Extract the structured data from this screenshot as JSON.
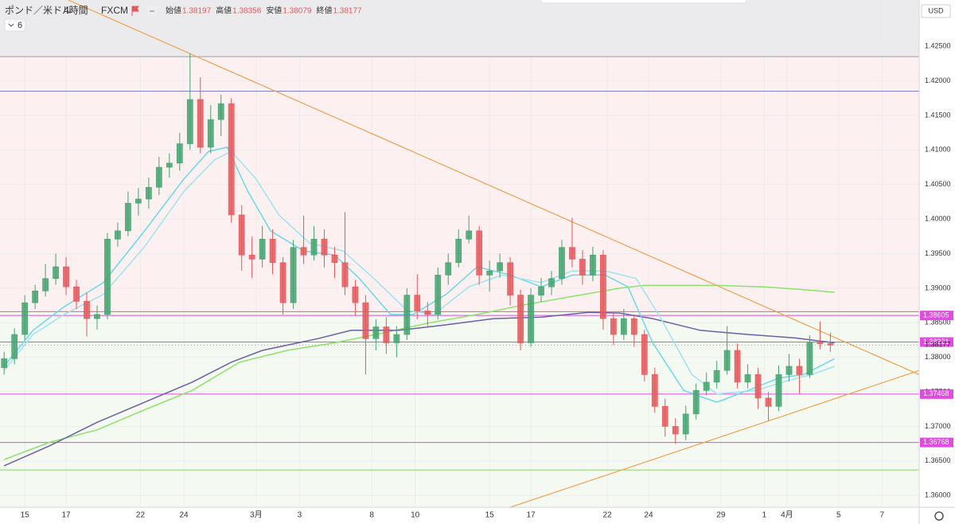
{
  "header": {
    "symbol": "ポンド／米ドル",
    "interval": "4時間",
    "source": "FXCM",
    "ohlc_labels": [
      "始値",
      "高値",
      "安値",
      "終値"
    ],
    "indicator_count": 6,
    "currency": "USD"
  },
  "chart_data": {
    "type": "candlestick",
    "x": [
      -1,
      -0.5,
      0,
      0.5,
      1,
      1.5,
      2,
      2.5,
      3,
      3.5,
      4,
      4.5,
      5,
      5.5,
      6,
      6.5,
      7,
      7.5,
      8,
      8.5,
      9,
      9.5,
      10,
      10.5,
      11,
      11.5,
      12,
      12.5,
      13,
      13.5,
      14,
      14.5,
      15,
      15.5,
      16,
      16.5,
      17,
      17.5,
      18,
      18.5,
      19,
      19.5,
      20,
      20.5,
      21,
      21.5,
      22,
      22.5,
      23,
      23.5,
      24,
      24.5,
      25,
      25.5,
      26,
      26.5,
      27,
      27.5,
      28,
      28.5,
      29,
      29.5,
      30,
      30.5,
      31,
      31.5,
      32,
      32.5,
      33,
      33.5,
      34,
      34.5,
      35,
      35.5,
      36,
      36.5,
      37,
      37.5,
      38,
      38.5,
      39
    ],
    "open": [
      1.3785,
      1.3798,
      1.3833,
      1.3879,
      1.3896,
      1.3914,
      1.3931,
      1.3902,
      1.3881,
      1.3856,
      1.3862,
      1.3971,
      1.3983,
      1.4023,
      1.4029,
      1.4046,
      1.4075,
      1.4081,
      1.4109,
      1.4173,
      1.4104,
      1.4144,
      1.4167,
      1.4006,
      1.3948,
      1.3942,
      1.3971,
      1.3937,
      1.3879,
      1.3959,
      1.3948,
      1.3971,
      1.3948,
      1.3937,
      1.3902,
      1.3879,
      1.3827,
      1.3844,
      1.3821,
      1.3833,
      1.389,
      1.3867,
      1.3862,
      1.3919,
      1.3937,
      1.3971,
      1.3983,
      1.3919,
      1.3925,
      1.3937,
      1.389,
      1.3821,
      1.389,
      1.3902,
      1.3914,
      1.3959,
      1.3942,
      1.3919,
      1.3948,
      1.3856,
      1.3833,
      1.3856,
      1.3833,
      1.3775,
      1.3729,
      1.37,
      1.3689,
      1.3718,
      1.3752,
      1.3764,
      1.3781,
      1.381,
      1.3764,
      1.3775,
      1.3741,
      1.3729,
      1.3775,
      1.3787,
      1.3775,
      1.3821,
      1.38197
    ],
    "high": [
      1.3808,
      1.3842,
      1.389,
      1.3905,
      1.3935,
      1.395,
      1.3945,
      1.3912,
      1.3893,
      1.3875,
      1.398,
      1.3995,
      1.404,
      1.4045,
      1.406,
      1.409,
      1.4095,
      1.4125,
      1.424,
      1.4205,
      1.4165,
      1.418,
      1.4175,
      1.402,
      1.3975,
      1.399,
      1.3985,
      1.3945,
      1.397,
      1.4005,
      1.399,
      1.3985,
      1.396,
      1.401,
      1.3912,
      1.389,
      1.3855,
      1.3858,
      1.3845,
      1.39,
      1.392,
      1.388,
      1.393,
      1.395,
      1.3985,
      1.4005,
      1.399,
      1.394,
      1.395,
      1.3945,
      1.3898,
      1.39,
      1.3915,
      1.3925,
      1.397,
      1.4002,
      1.3955,
      1.396,
      1.3955,
      1.3865,
      1.387,
      1.3862,
      1.384,
      1.3785,
      1.374,
      1.3712,
      1.373,
      1.3762,
      1.3778,
      1.3795,
      1.3845,
      1.382,
      1.379,
      1.3785,
      1.375,
      1.3788,
      1.3805,
      1.3798,
      1.3832,
      1.3852,
      1.38356
    ],
    "low": [
      1.3775,
      1.379,
      1.3825,
      1.387,
      1.3888,
      1.3905,
      1.389,
      1.387,
      1.383,
      1.384,
      1.3855,
      1.396,
      1.3975,
      1.4005,
      1.4015,
      1.4035,
      1.406,
      1.407,
      1.41,
      1.4095,
      1.4095,
      1.412,
      1.3995,
      1.3925,
      1.3915,
      1.393,
      1.392,
      1.3862,
      1.387,
      1.3935,
      1.394,
      1.393,
      1.3915,
      1.389,
      1.386,
      1.3775,
      1.381,
      1.3805,
      1.38,
      1.3825,
      1.3855,
      1.3845,
      1.3855,
      1.3905,
      1.393,
      1.3965,
      1.3905,
      1.3895,
      1.3915,
      1.3875,
      1.381,
      1.3815,
      1.388,
      1.389,
      1.3905,
      1.393,
      1.3905,
      1.391,
      1.384,
      1.3818,
      1.3825,
      1.3815,
      1.3765,
      1.372,
      1.3685,
      1.3675,
      1.368,
      1.371,
      1.3745,
      1.3755,
      1.3775,
      1.3755,
      1.3755,
      1.3725,
      1.3708,
      1.3722,
      1.3765,
      1.3748,
      1.377,
      1.3812,
      1.38079
    ],
    "close": [
      1.3798,
      1.3833,
      1.3879,
      1.3896,
      1.3914,
      1.3931,
      1.3902,
      1.3881,
      1.3856,
      1.3862,
      1.3971,
      1.3983,
      1.4023,
      1.4029,
      1.4046,
      1.4075,
      1.4081,
      1.4109,
      1.4173,
      1.4104,
      1.4144,
      1.4167,
      1.4006,
      1.3948,
      1.3942,
      1.3971,
      1.3937,
      1.3879,
      1.3959,
      1.3948,
      1.3971,
      1.3948,
      1.3937,
      1.3902,
      1.3879,
      1.3827,
      1.3844,
      1.3821,
      1.3833,
      1.389,
      1.3867,
      1.3862,
      1.3919,
      1.3937,
      1.3971,
      1.3983,
      1.3919,
      1.3925,
      1.3937,
      1.389,
      1.3821,
      1.389,
      1.3902,
      1.3914,
      1.3959,
      1.3942,
      1.3919,
      1.3948,
      1.3856,
      1.3833,
      1.3856,
      1.3833,
      1.3775,
      1.3729,
      1.37,
      1.3689,
      1.3718,
      1.3752,
      1.3764,
      1.3781,
      1.381,
      1.3764,
      1.3775,
      1.3741,
      1.3729,
      1.3775,
      1.3787,
      1.3775,
      1.3821,
      1.38197,
      1.38177
    ],
    "up_color": "#43a36f",
    "down_color": "#e4575a",
    "xlim": [
      -1.2,
      43.3
    ],
    "ylim": [
      1.3583,
      1.4317
    ],
    "yticks": [
      {
        "value": 1.36,
        "label": "1.36000"
      },
      {
        "value": 1.365,
        "label": "1.36500"
      },
      {
        "value": 1.37,
        "label": "1.37000"
      },
      {
        "value": 1.375,
        "label": "1.37500"
      },
      {
        "value": 1.38,
        "label": "1.38000"
      },
      {
        "value": 1.385,
        "label": "1.38500"
      },
      {
        "value": 1.39,
        "label": "1.39000"
      },
      {
        "value": 1.395,
        "label": "1.39500"
      },
      {
        "value": 1.4,
        "label": "1.40000"
      },
      {
        "value": 1.405,
        "label": "1.40500"
      },
      {
        "value": 1.41,
        "label": "1.41000"
      },
      {
        "value": 1.415,
        "label": "1.41500"
      },
      {
        "value": 1.42,
        "label": "1.42000"
      },
      {
        "value": 1.425,
        "label": "1.42500"
      }
    ],
    "xticks": [
      {
        "value": 0,
        "label": "15"
      },
      {
        "value": 2,
        "label": "17"
      },
      {
        "value": 5.6,
        "label": "22"
      },
      {
        "value": 7.7,
        "label": "24"
      },
      {
        "value": 11.2,
        "label": "3月"
      },
      {
        "value": 13.3,
        "label": "3"
      },
      {
        "value": 16.8,
        "label": "8"
      },
      {
        "value": 18.9,
        "label": "10"
      },
      {
        "value": 22.5,
        "label": "15"
      },
      {
        "value": 24.5,
        "label": "17"
      },
      {
        "value": 28.2,
        "label": "22"
      },
      {
        "value": 30.2,
        "label": "24"
      },
      {
        "value": 33.7,
        "label": "29"
      },
      {
        "value": 35.8,
        "label": "1"
      },
      {
        "value": 36.9,
        "label": "4月"
      },
      {
        "value": 39.4,
        "label": "5"
      },
      {
        "value": 41.5,
        "label": "7"
      }
    ],
    "grid": true,
    "zones": [
      {
        "from": 1.4235,
        "to": 1.4317,
        "color": "#ebebee"
      },
      {
        "from": 1.3866,
        "to": 1.4235,
        "color": "#fcf0f0"
      },
      {
        "from": 1.3583,
        "to": 1.3866,
        "color": "#f4f9f1"
      }
    ],
    "levels": [
      {
        "value": 1.4235,
        "color": "#9e9e9e",
        "labeled": false
      },
      {
        "value": 1.4185,
        "color": "#7b7fd6",
        "labeled": false
      },
      {
        "value": 1.3866,
        "color": "#ec5b7a",
        "labeled": false
      },
      {
        "value": 1.38605,
        "color": "#e04be0",
        "labeled": true
      },
      {
        "value": 1.38221,
        "color": "#e04be0",
        "labeled": true
      },
      {
        "value": 1.37468,
        "color": "#e04be0",
        "labeled": true
      },
      {
        "value": 1.36768,
        "color": "#e04be0",
        "labeled": true
      },
      {
        "value": 1.3637,
        "color": "#8bd36b",
        "labeled": false
      }
    ],
    "mas": [
      {
        "color": "#8be36b",
        "x": [
          -1,
          1.2,
          3.5,
          5.8,
          8.1,
          10.4,
          12.7,
          15,
          17.3,
          19.6,
          21.9,
          24.2,
          26.5,
          28.8,
          30,
          33.5,
          35.8,
          38.1,
          39.2
        ],
        "values": [
          1.3652,
          1.3677,
          1.3695,
          1.3724,
          1.3752,
          1.3793,
          1.381,
          1.3821,
          1.3835,
          1.385,
          1.3862,
          1.3876,
          1.3888,
          1.39,
          1.3904,
          1.3904,
          1.3902,
          1.3897,
          1.3894
        ]
      },
      {
        "color": "#6c5fa8",
        "x": [
          -1,
          1.2,
          3.5,
          5.8,
          8.1,
          10,
          11.5,
          14.2,
          15.8,
          18.1,
          20.4,
          22.7,
          25,
          27.3,
          28.8,
          30.4,
          32.7,
          35,
          37.3,
          39.2
        ],
        "values": [
          1.3643,
          1.3672,
          1.3706,
          1.3735,
          1.3764,
          1.3793,
          1.381,
          1.3827,
          1.3839,
          1.3839,
          1.3847,
          1.3856,
          1.3858,
          1.3865,
          1.3864,
          1.3856,
          1.3839,
          1.3833,
          1.3828,
          1.3821
        ]
      },
      {
        "color": "#6ad9e8",
        "x": [
          -1,
          0.4,
          1.9,
          3.8,
          5.8,
          7.7,
          8.9,
          9.8,
          10.8,
          11.9,
          13.5,
          15,
          16.2,
          17.7,
          18.8,
          20.4,
          21.9,
          23.5,
          25,
          26.5,
          28.1,
          29.2,
          30.4,
          31.9,
          33.5,
          35,
          36.5,
          37.7,
          39.2
        ],
        "values": [
          1.3787,
          1.3839,
          1.3873,
          1.3908,
          1.3983,
          1.4058,
          1.4098,
          1.4104,
          1.404,
          1.3983,
          1.3954,
          1.3948,
          1.3914,
          1.3862,
          1.3862,
          1.3891,
          1.3931,
          1.3919,
          1.3902,
          1.3919,
          1.3919,
          1.3902,
          1.3821,
          1.3752,
          1.3735,
          1.3752,
          1.377,
          1.3775,
          1.3798
        ]
      },
      {
        "color": "#9fe3f0",
        "x": [
          -1,
          0.4,
          1.9,
          3.8,
          5.8,
          7.7,
          9.2,
          10,
          11.2,
          12.3,
          13.8,
          15.4,
          16.9,
          18.5,
          19.8,
          21.5,
          23.1,
          25,
          26.5,
          28.1,
          29.6,
          30.8,
          32.3,
          33.5,
          35.4,
          36.9,
          38.1,
          39.2
        ],
        "values": [
          1.3781,
          1.3833,
          1.3862,
          1.3891,
          1.396,
          1.404,
          1.4086,
          1.4098,
          1.4058,
          1.4006,
          1.3965,
          1.3954,
          1.3914,
          1.3868,
          1.3862,
          1.3902,
          1.3919,
          1.3908,
          1.3925,
          1.3925,
          1.3914,
          1.3856,
          1.3775,
          1.3747,
          1.3752,
          1.3766,
          1.3775,
          1.3787
        ]
      }
    ],
    "trendlines": [
      {
        "color": "#f0a150",
        "x": [
          2.1,
          43.3
        ],
        "y": [
          1.4317,
          1.3775
        ]
      },
      {
        "color": "#f0a150",
        "x": [
          23.5,
          43.3
        ],
        "y": [
          1.3583,
          1.3781
        ]
      }
    ]
  }
}
